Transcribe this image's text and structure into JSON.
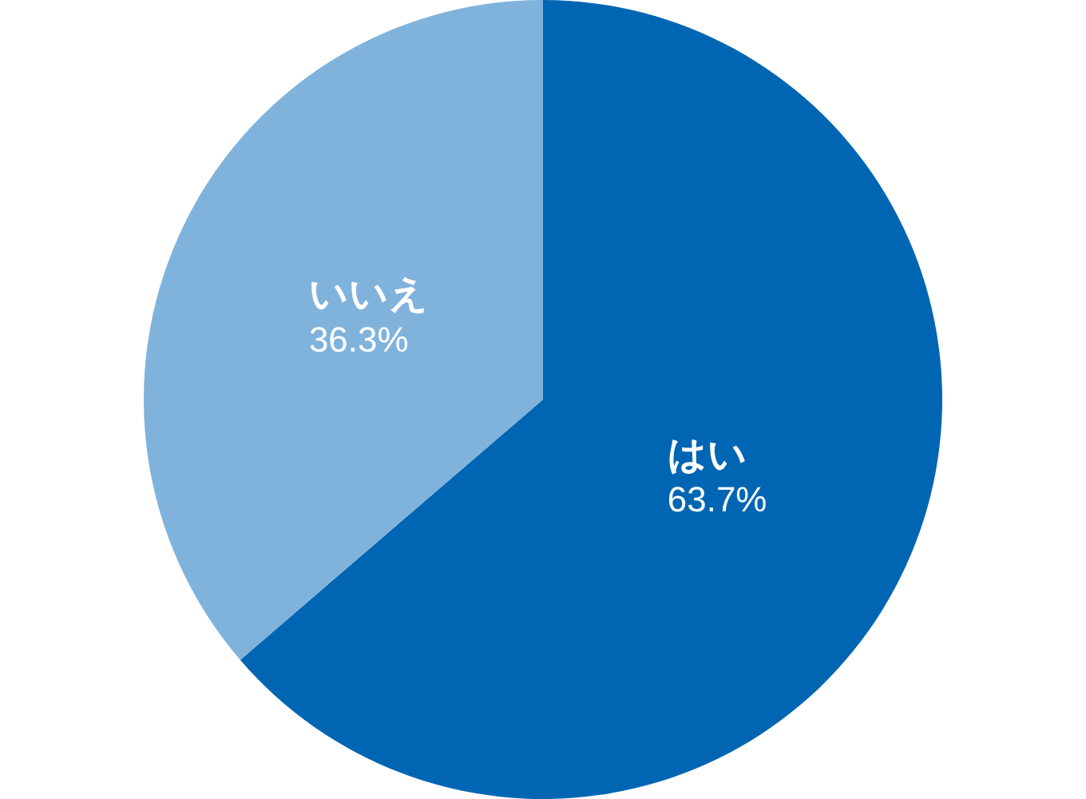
{
  "chart_data": {
    "type": "pie",
    "categories": [
      "はい",
      "いいえ"
    ],
    "values": [
      63.7,
      36.3
    ],
    "colors": [
      "#0066b3",
      "#80b3dc"
    ],
    "value_labels": [
      "63.7%",
      "36.3%"
    ]
  }
}
